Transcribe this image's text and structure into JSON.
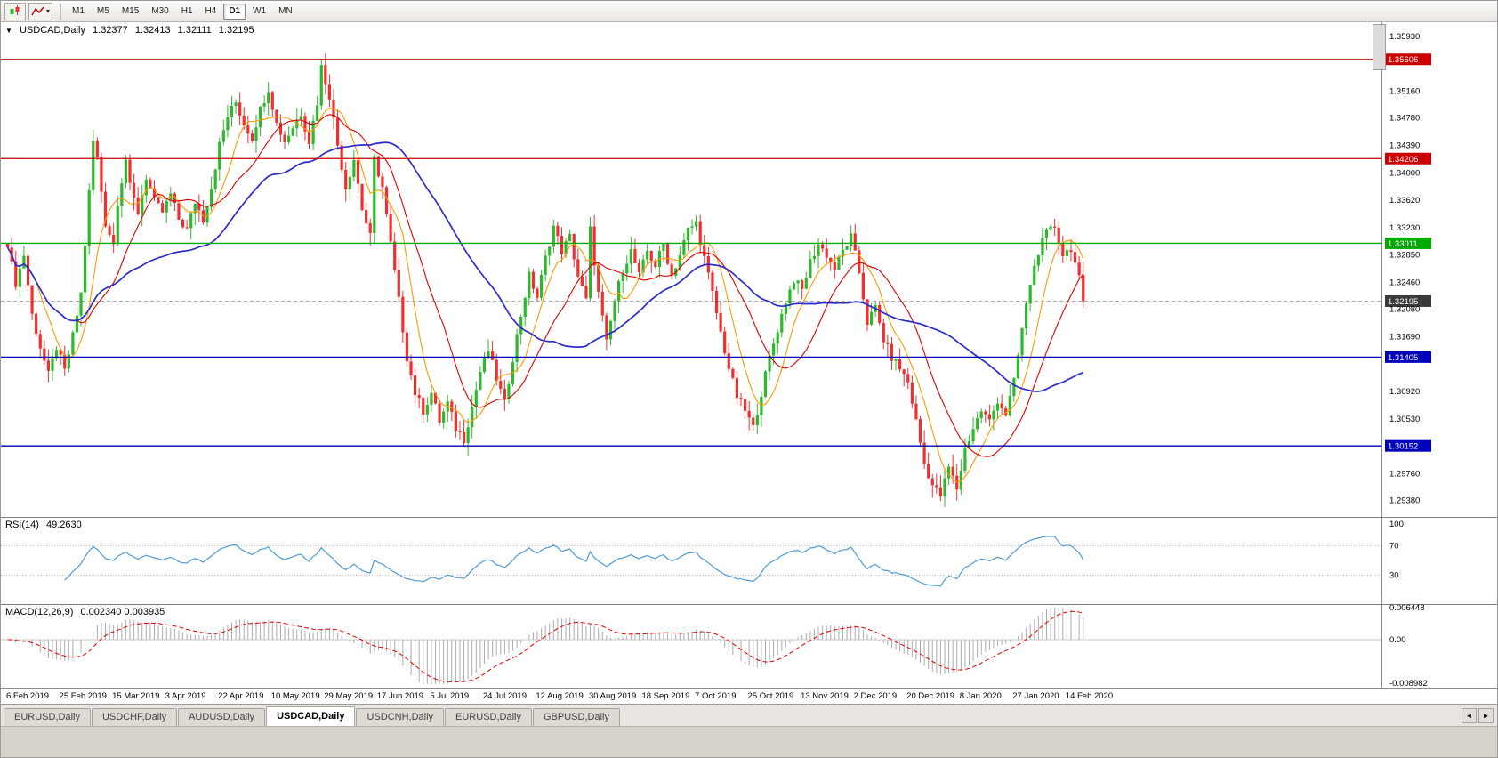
{
  "toolbar": {
    "timeframes": [
      "M1",
      "M5",
      "M15",
      "M30",
      "H1",
      "H4",
      "D1",
      "W1",
      "MN"
    ],
    "active_timeframe": "D1"
  },
  "header": {
    "collapse_glyph": "▼",
    "symbol": "USDCAD,Daily",
    "open": "1.32377",
    "high": "1.32413",
    "low": "1.32111",
    "close": "1.32195"
  },
  "indicators": {
    "rsi_label": "RSI(14)",
    "rsi_value": "49.2630",
    "rsi_levels": [
      100,
      70,
      30
    ],
    "macd_label": "MACD(12,26,9)",
    "macd_values": "0.002340 0.003935",
    "macd_axis": [
      {
        "v": 0.006448,
        "label": "0.006448"
      },
      {
        "v": 0,
        "label": "0.00"
      },
      {
        "v": -0.008982,
        "label": "-0.008982"
      }
    ]
  },
  "price_axis": {
    "ticks": [
      1.3593,
      1.3554,
      1.3516,
      1.3478,
      1.3439,
      1.34,
      1.3362,
      1.3323,
      1.3285,
      1.3246,
      1.3208,
      1.3169,
      1.3131,
      1.3092,
      1.3053,
      1.3014,
      1.2976,
      1.2938
    ],
    "levels": [
      {
        "price": 1.35606,
        "color": "#CC0000"
      },
      {
        "price": 1.34206,
        "color": "#CC0000"
      },
      {
        "price": 1.33011,
        "color": "#00AA00"
      },
      {
        "price": 1.31405,
        "color": "#0000BB"
      },
      {
        "price": 1.30152,
        "color": "#0000BB"
      }
    ],
    "current": {
      "price": 1.32195,
      "color": "#3A3A3A"
    }
  },
  "chart_data": {
    "type": "candlestick",
    "symbol": "USDCAD",
    "timeframe": "Daily",
    "ohlc_display": {
      "open": 1.32377,
      "high": 1.32413,
      "low": 1.32111,
      "close": 1.32195
    },
    "x_labels": [
      "6 Feb 2019",
      "25 Feb 2019",
      "15 Mar 2019",
      "3 Apr 2019",
      "22 Apr 2019",
      "10 May 2019",
      "29 May 2019",
      "17 Jun 2019",
      "5 Jul 2019",
      "24 Jul 2019",
      "12 Aug 2019",
      "30 Aug 2019",
      "18 Sep 2019",
      "7 Oct 2019",
      "25 Oct 2019",
      "13 Nov 2019",
      "2 Dec 2019",
      "20 Dec 2019",
      "8 Jan 2020",
      "27 Jan 2020",
      "14 Feb 2020"
    ],
    "days_per_label": 13,
    "days_total": 265,
    "y_range": [
      1.2915,
      1.3613
    ],
    "close_keypoints": [
      [
        0,
        1.3295
      ],
      [
        2,
        1.3245
      ],
      [
        4,
        1.3285
      ],
      [
        6,
        1.32
      ],
      [
        8,
        1.3155
      ],
      [
        10,
        1.3115
      ],
      [
        12,
        1.3155
      ],
      [
        14,
        1.312
      ],
      [
        16,
        1.317
      ],
      [
        18,
        1.323
      ],
      [
        19,
        1.33
      ],
      [
        21,
        1.3445
      ],
      [
        22,
        1.342
      ],
      [
        24,
        1.333
      ],
      [
        26,
        1.33
      ],
      [
        27,
        1.336
      ],
      [
        29,
        1.342
      ],
      [
        30,
        1.338
      ],
      [
        32,
        1.3345
      ],
      [
        34,
        1.3395
      ],
      [
        36,
        1.336
      ],
      [
        38,
        1.3345
      ],
      [
        40,
        1.337
      ],
      [
        42,
        1.3335
      ],
      [
        44,
        1.332
      ],
      [
        46,
        1.336
      ],
      [
        48,
        1.3335
      ],
      [
        50,
        1.338
      ],
      [
        52,
        1.344
      ],
      [
        54,
        1.348
      ],
      [
        56,
        1.35
      ],
      [
        58,
        1.347
      ],
      [
        60,
        1.345
      ],
      [
        62,
        1.349
      ],
      [
        64,
        1.352
      ],
      [
        66,
        1.347
      ],
      [
        68,
        1.3445
      ],
      [
        70,
        1.3465
      ],
      [
        72,
        1.3485
      ],
      [
        74,
        1.3445
      ],
      [
        76,
        1.35
      ],
      [
        77,
        1.355
      ],
      [
        79,
        1.351
      ],
      [
        81,
        1.344
      ],
      [
        83,
        1.338
      ],
      [
        85,
        1.342
      ],
      [
        87,
        1.335
      ],
      [
        89,
        1.331
      ],
      [
        90,
        1.342
      ],
      [
        92,
        1.338
      ],
      [
        94,
        1.33
      ],
      [
        96,
        1.322
      ],
      [
        98,
        1.314
      ],
      [
        100,
        1.309
      ],
      [
        102,
        1.3065
      ],
      [
        104,
        1.309
      ],
      [
        106,
        1.305
      ],
      [
        108,
        1.3075
      ],
      [
        110,
        1.304
      ],
      [
        112,
        1.3025
      ],
      [
        114,
        1.307
      ],
      [
        116,
        1.312
      ],
      [
        118,
        1.315
      ],
      [
        120,
        1.311
      ],
      [
        122,
        1.3075
      ],
      [
        124,
        1.314
      ],
      [
        126,
        1.32
      ],
      [
        128,
        1.3255
      ],
      [
        130,
        1.3225
      ],
      [
        132,
        1.328
      ],
      [
        134,
        1.3325
      ],
      [
        136,
        1.329
      ],
      [
        138,
        1.331
      ],
      [
        140,
        1.3255
      ],
      [
        142,
        1.322
      ],
      [
        143,
        1.332
      ],
      [
        145,
        1.323
      ],
      [
        147,
        1.316
      ],
      [
        149,
        1.322
      ],
      [
        151,
        1.3265
      ],
      [
        153,
        1.329
      ],
      [
        155,
        1.3255
      ],
      [
        157,
        1.329
      ],
      [
        159,
        1.327
      ],
      [
        161,
        1.33
      ],
      [
        163,
        1.3255
      ],
      [
        165,
        1.3285
      ],
      [
        167,
        1.332
      ],
      [
        169,
        1.333
      ],
      [
        171,
        1.328
      ],
      [
        173,
        1.323
      ],
      [
        175,
        1.3175
      ],
      [
        177,
        1.3125
      ],
      [
        179,
        1.3085
      ],
      [
        181,
        1.3065
      ],
      [
        183,
        1.304
      ],
      [
        185,
        1.309
      ],
      [
        187,
        1.314
      ],
      [
        189,
        1.318
      ],
      [
        191,
        1.322
      ],
      [
        193,
        1.325
      ],
      [
        195,
        1.3235
      ],
      [
        197,
        1.3275
      ],
      [
        199,
        1.33
      ],
      [
        201,
        1.3285
      ],
      [
        203,
        1.3265
      ],
      [
        205,
        1.329
      ],
      [
        207,
        1.331
      ],
      [
        209,
        1.326
      ],
      [
        211,
        1.319
      ],
      [
        213,
        1.321
      ],
      [
        215,
        1.3165
      ],
      [
        217,
        1.314
      ],
      [
        219,
        1.3125
      ],
      [
        221,
        1.3105
      ],
      [
        223,
        1.305
      ],
      [
        225,
        1.299
      ],
      [
        227,
        1.296
      ],
      [
        229,
        1.2945
      ],
      [
        231,
        1.2985
      ],
      [
        233,
        1.2955
      ],
      [
        235,
        1.301
      ],
      [
        237,
        1.304
      ],
      [
        239,
        1.3065
      ],
      [
        241,
        1.305
      ],
      [
        243,
        1.308
      ],
      [
        245,
        1.306
      ],
      [
        247,
        1.3105
      ],
      [
        249,
        1.318
      ],
      [
        251,
        1.3245
      ],
      [
        253,
        1.329
      ],
      [
        255,
        1.3315
      ],
      [
        257,
        1.3325
      ],
      [
        259,
        1.3285
      ],
      [
        261,
        1.3295
      ],
      [
        263,
        1.325
      ],
      [
        264,
        1.32195
      ]
    ],
    "moving_averages": [
      {
        "period": 8,
        "color": "#FF9900",
        "width": 1.1
      },
      {
        "period": 18,
        "color": "#E00000",
        "width": 1.1
      },
      {
        "period": 45,
        "color": "#2B2BCC",
        "width": 1.7
      }
    ],
    "rsi": {
      "period": 14,
      "color": "#4E9BD4",
      "current": 49.263
    },
    "macd": {
      "fast": 12,
      "slow": 26,
      "signal": 9,
      "histogram_color": "#ABABAB",
      "signal_color": "#E00000",
      "current_macd": 0.00234,
      "current_signal": 0.003935
    },
    "candle_up_color": "#2DB82D",
    "candle_down_color": "#F03030"
  },
  "tabs": {
    "items": [
      {
        "label": "EURUSD,Daily",
        "active": false
      },
      {
        "label": "USDCHF,Daily",
        "active": false
      },
      {
        "label": "AUDUSD,Daily",
        "active": false
      },
      {
        "label": "USDCAD,Daily",
        "active": true
      },
      {
        "label": "USDCNH,Daily",
        "active": false
      },
      {
        "label": "EURUSD,Daily",
        "active": false
      },
      {
        "label": "GBPUSD,Daily",
        "active": false
      }
    ]
  },
  "tab_scroll": {
    "left": "◄",
    "right": "►"
  }
}
